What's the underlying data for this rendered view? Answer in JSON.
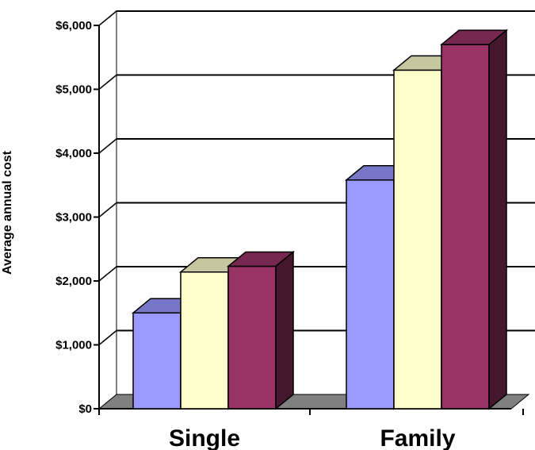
{
  "chart_data": {
    "type": "bar",
    "three_d": true,
    "title": "",
    "xlabel": "",
    "ylabel": "Average annual cost",
    "categories": [
      "Single",
      "Family"
    ],
    "series": [
      {
        "color": "#9999ff",
        "values": [
          1500,
          3580
        ]
      },
      {
        "color": "#ffffcc",
        "values": [
          2140,
          5300
        ]
      },
      {
        "color": "#993366",
        "values": [
          2230,
          5700
        ]
      }
    ],
    "ylim": [
      0,
      6000
    ],
    "yticks": [
      {
        "value": 0,
        "label": "$0"
      },
      {
        "value": 1000,
        "label": "$1,000"
      },
      {
        "value": 2000,
        "label": "$2,000"
      },
      {
        "value": 3000,
        "label": "$3,000"
      },
      {
        "value": 4000,
        "label": "$4,000"
      },
      {
        "value": 5000,
        "label": "$5,000"
      },
      {
        "value": 6000,
        "label": "$6,000"
      }
    ],
    "grid": true,
    "legend": "none",
    "wall_floor_color": "#808080"
  }
}
